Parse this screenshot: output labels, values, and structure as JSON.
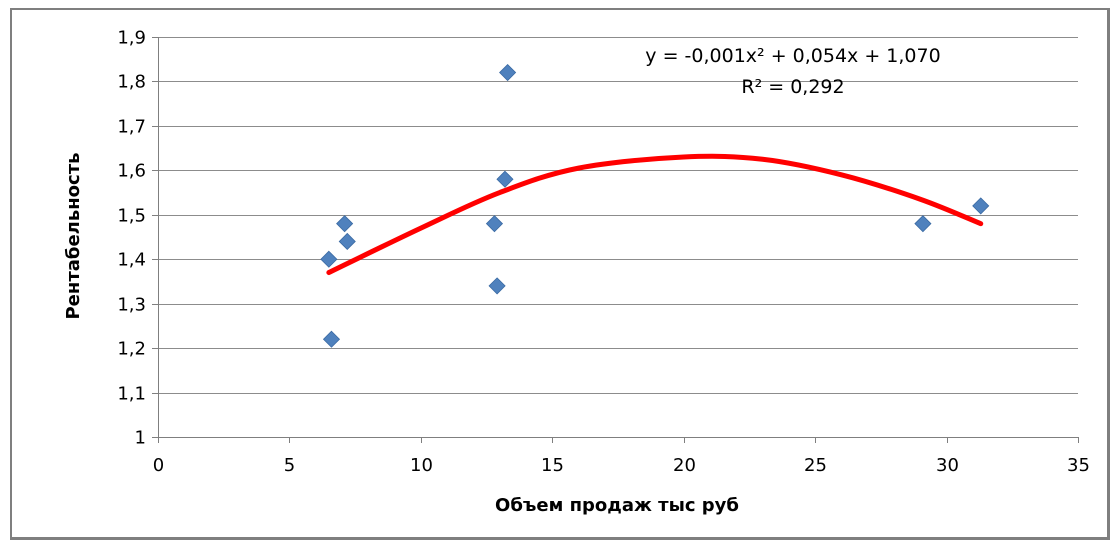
{
  "chart_data": {
    "type": "scatter",
    "title": "",
    "xlabel": "Объем продаж тыс руб",
    "ylabel": "Рентабельность",
    "xlim": [
      0,
      35
    ],
    "ylim": [
      1,
      1.9
    ],
    "x_ticks": [
      0,
      5,
      10,
      15,
      20,
      25,
      30,
      35
    ],
    "y_ticks": [
      1,
      1.1,
      1.2,
      1.3,
      1.4,
      1.5,
      1.6,
      1.7,
      1.8,
      1.9
    ],
    "x_tick_labels": [
      "0",
      "5",
      "10",
      "15",
      "20",
      "25",
      "30",
      "35"
    ],
    "y_tick_labels": [
      "1",
      "1,1",
      "1,2",
      "1,3",
      "1,4",
      "1,5",
      "1,6",
      "1,7",
      "1,8",
      "1,9"
    ],
    "grid": true,
    "legend": "none",
    "series": [
      {
        "marker": "diamond",
        "color": "#4f81bd",
        "points": [
          {
            "x": 6.5,
            "y": 1.4
          },
          {
            "x": 6.6,
            "y": 1.22
          },
          {
            "x": 7.1,
            "y": 1.48
          },
          {
            "x": 7.2,
            "y": 1.44
          },
          {
            "x": 12.8,
            "y": 1.48
          },
          {
            "x": 12.9,
            "y": 1.34
          },
          {
            "x": 13.2,
            "y": 1.58
          },
          {
            "x": 13.3,
            "y": 1.82
          },
          {
            "x": 29.1,
            "y": 1.48
          },
          {
            "x": 31.3,
            "y": 1.52
          }
        ]
      }
    ],
    "trendline": {
      "type": "polynomial",
      "color": "#ff0000",
      "x_range": [
        6.5,
        31.3
      ],
      "points": [
        {
          "x": 6.5,
          "y": 1.37
        },
        {
          "x": 10,
          "y": 1.47
        },
        {
          "x": 13,
          "y": 1.55
        },
        {
          "x": 16,
          "y": 1.605
        },
        {
          "x": 20,
          "y": 1.63
        },
        {
          "x": 23,
          "y": 1.625
        },
        {
          "x": 26,
          "y": 1.59
        },
        {
          "x": 29,
          "y": 1.535
        },
        {
          "x": 31.3,
          "y": 1.48
        }
      ],
      "equation": "y = -0,001x² + 0,054x + 1,070",
      "r_squared": "R² = 0,292"
    }
  }
}
